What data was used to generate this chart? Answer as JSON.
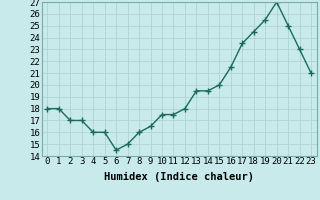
{
  "x": [
    0,
    1,
    2,
    3,
    4,
    5,
    6,
    7,
    8,
    9,
    10,
    11,
    12,
    13,
    14,
    15,
    16,
    17,
    18,
    19,
    20,
    21,
    22,
    23
  ],
  "y": [
    18,
    18,
    17,
    17,
    16,
    16,
    14.5,
    15,
    16,
    16.5,
    17.5,
    17.5,
    18,
    19.5,
    19.5,
    20,
    21.5,
    23.5,
    24.5,
    25.5,
    27,
    25,
    23,
    21
  ],
  "line_color": "#1a6b5a",
  "marker": "+",
  "marker_size": 4,
  "bg_color": "#c8eaea",
  "grid_color": "#b0d4d4",
  "xlabel": "Humidex (Indice chaleur)",
  "ylim": [
    14,
    27
  ],
  "xlim": [
    -0.5,
    23.5
  ],
  "yticks": [
    14,
    15,
    16,
    17,
    18,
    19,
    20,
    21,
    22,
    23,
    24,
    25,
    26,
    27
  ],
  "xticks": [
    0,
    1,
    2,
    3,
    4,
    5,
    6,
    7,
    8,
    9,
    10,
    11,
    12,
    13,
    14,
    15,
    16,
    17,
    18,
    19,
    20,
    21,
    22,
    23
  ],
  "xlabel_fontsize": 7.5,
  "tick_fontsize": 6.5,
  "line_width": 1.0,
  "marker_color": "#1a6b5a"
}
